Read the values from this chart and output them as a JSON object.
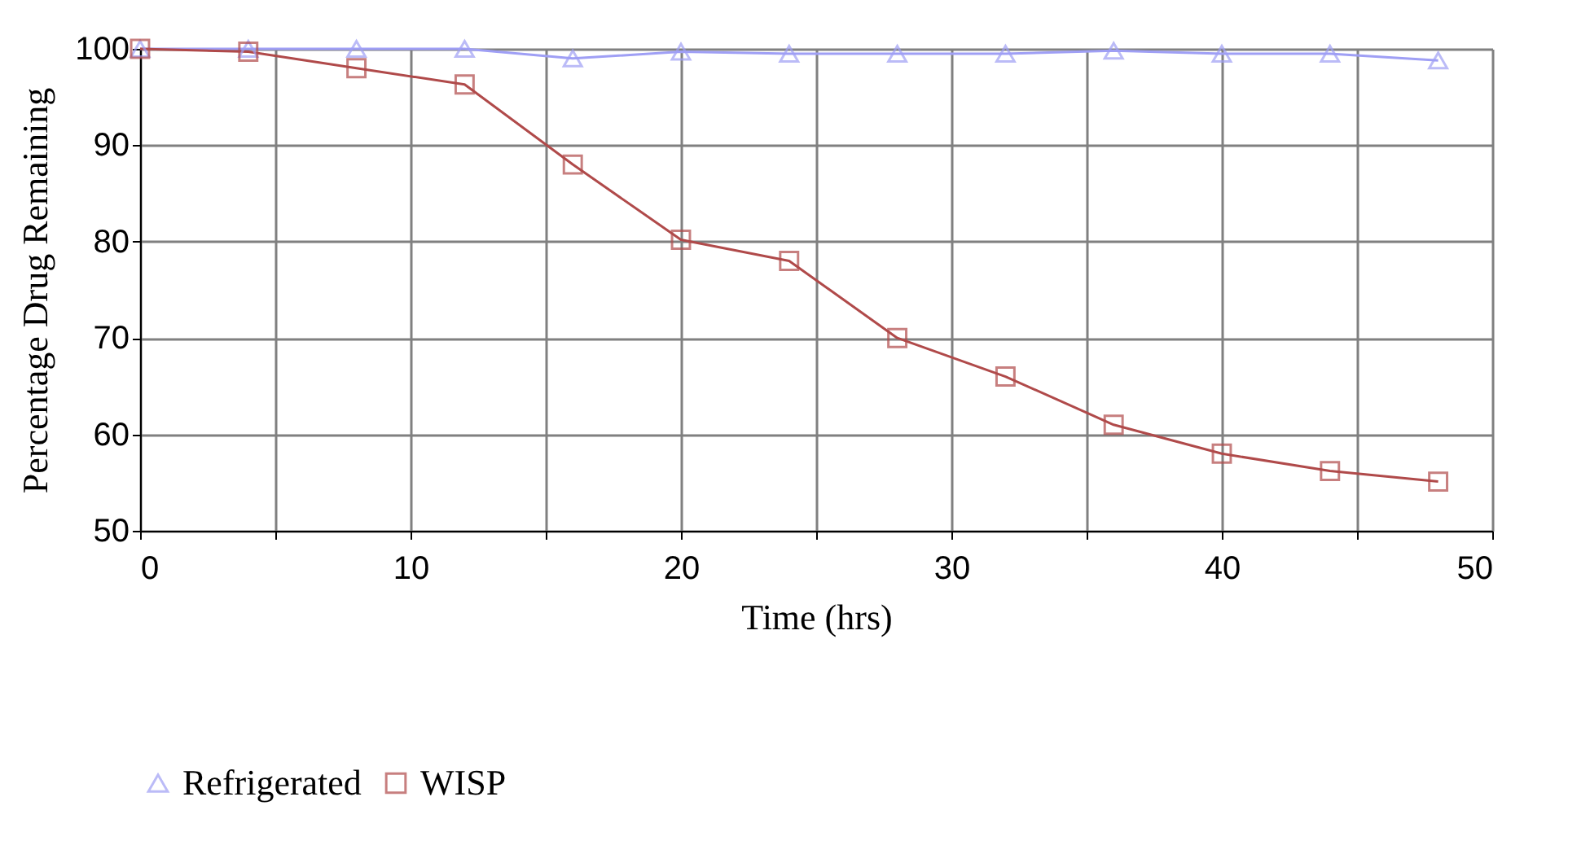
{
  "chart_data": {
    "type": "line",
    "xlabel": "Time (hrs)",
    "ylabel": "Percentage Drug Remaining",
    "x": [
      0,
      4,
      8,
      12,
      16,
      20,
      24,
      28,
      32,
      36,
      40,
      44,
      48
    ],
    "series": [
      {
        "name": "Refrigerated",
        "color": "#9f9ff5",
        "marker": "triangle",
        "values": [
          100,
          100,
          100,
          100,
          99,
          99.7,
          99.5,
          99.5,
          99.5,
          99.8,
          99.5,
          99.5,
          98.8
        ]
      },
      {
        "name": "WISP",
        "color": "#b04a4a",
        "marker": "square",
        "values": [
          100,
          99.7,
          98,
          96.3,
          88,
          80.2,
          78,
          70,
          66,
          61,
          58,
          56.2,
          55.1
        ]
      }
    ],
    "xlim": [
      0,
      50
    ],
    "xticks": [
      0,
      {
        "value": 5,
        "label": null
      },
      10,
      {
        "value": 15,
        "label": null
      },
      20,
      {
        "value": 25,
        "label": null
      },
      30,
      {
        "value": 35,
        "label": null
      },
      40,
      {
        "value": 45,
        "label": null
      },
      50
    ],
    "ylim": [
      50,
      100
    ],
    "yticks": [
      50,
      60,
      70,
      80,
      90,
      100
    ],
    "grid": true,
    "legend": "bottom",
    "line_style": "solid"
  }
}
